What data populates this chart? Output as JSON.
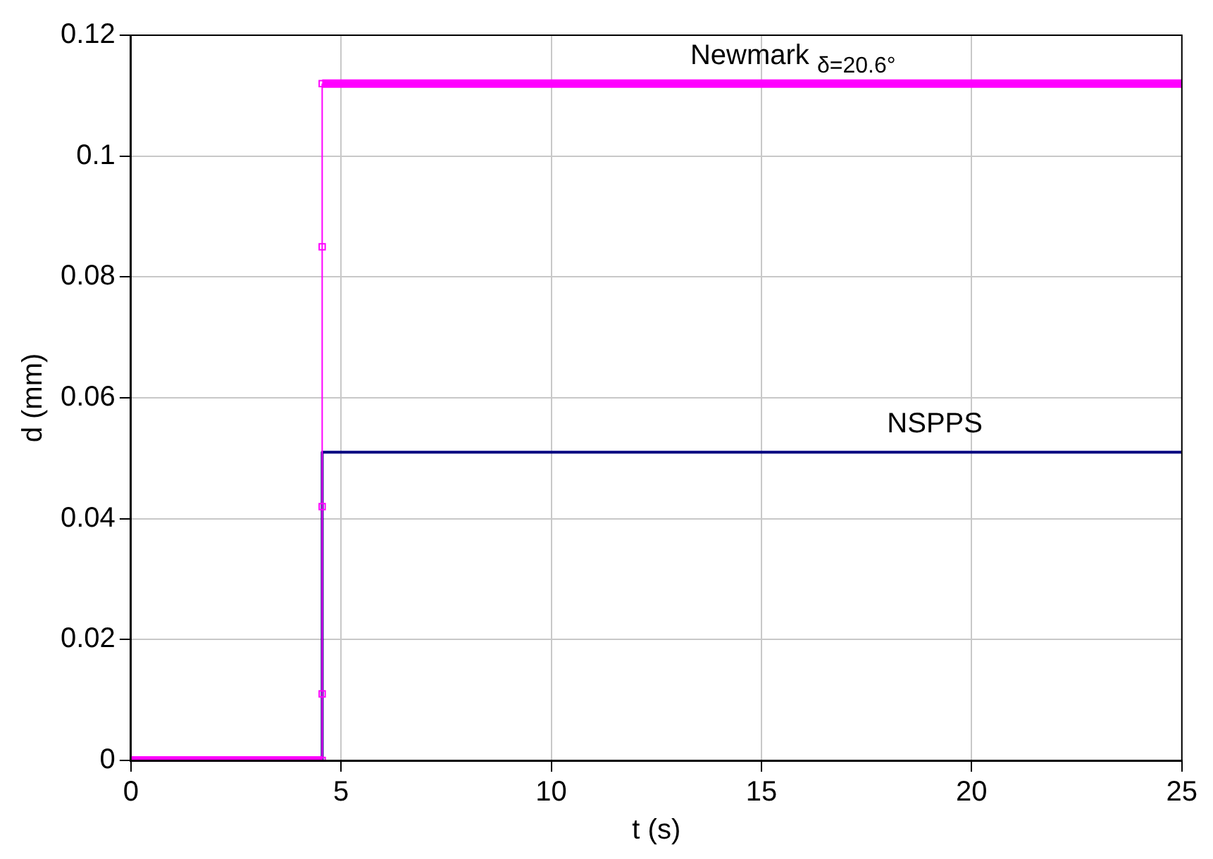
{
  "chart_data": {
    "type": "line",
    "xlabel": "t (s)",
    "ylabel": "d (mm)",
    "xlim": [
      0,
      25
    ],
    "xticks": [
      0,
      5,
      10,
      15,
      20,
      25
    ],
    "ylim": [
      0,
      0.12
    ],
    "yticks": [
      0,
      0.02,
      0.04,
      0.06,
      0.08,
      0.1,
      0.12
    ],
    "grid": true,
    "legend": false,
    "series": [
      {
        "name": "Newmark $_{δ=20.6°}$",
        "color": "#ff00ff",
        "marker": "square",
        "x": [
          0,
          4.55,
          4.55,
          4.55,
          4.55,
          4.55,
          25
        ],
        "values": [
          0,
          0,
          0.011,
          0.042,
          0.085,
          0.112,
          0.112
        ]
      },
      {
        "name": "NSPPS",
        "color": "#000080",
        "marker": "none",
        "x": [
          0,
          4.55,
          4.55,
          25
        ],
        "values": [
          0,
          0,
          0.051,
          0.051
        ]
      }
    ]
  }
}
